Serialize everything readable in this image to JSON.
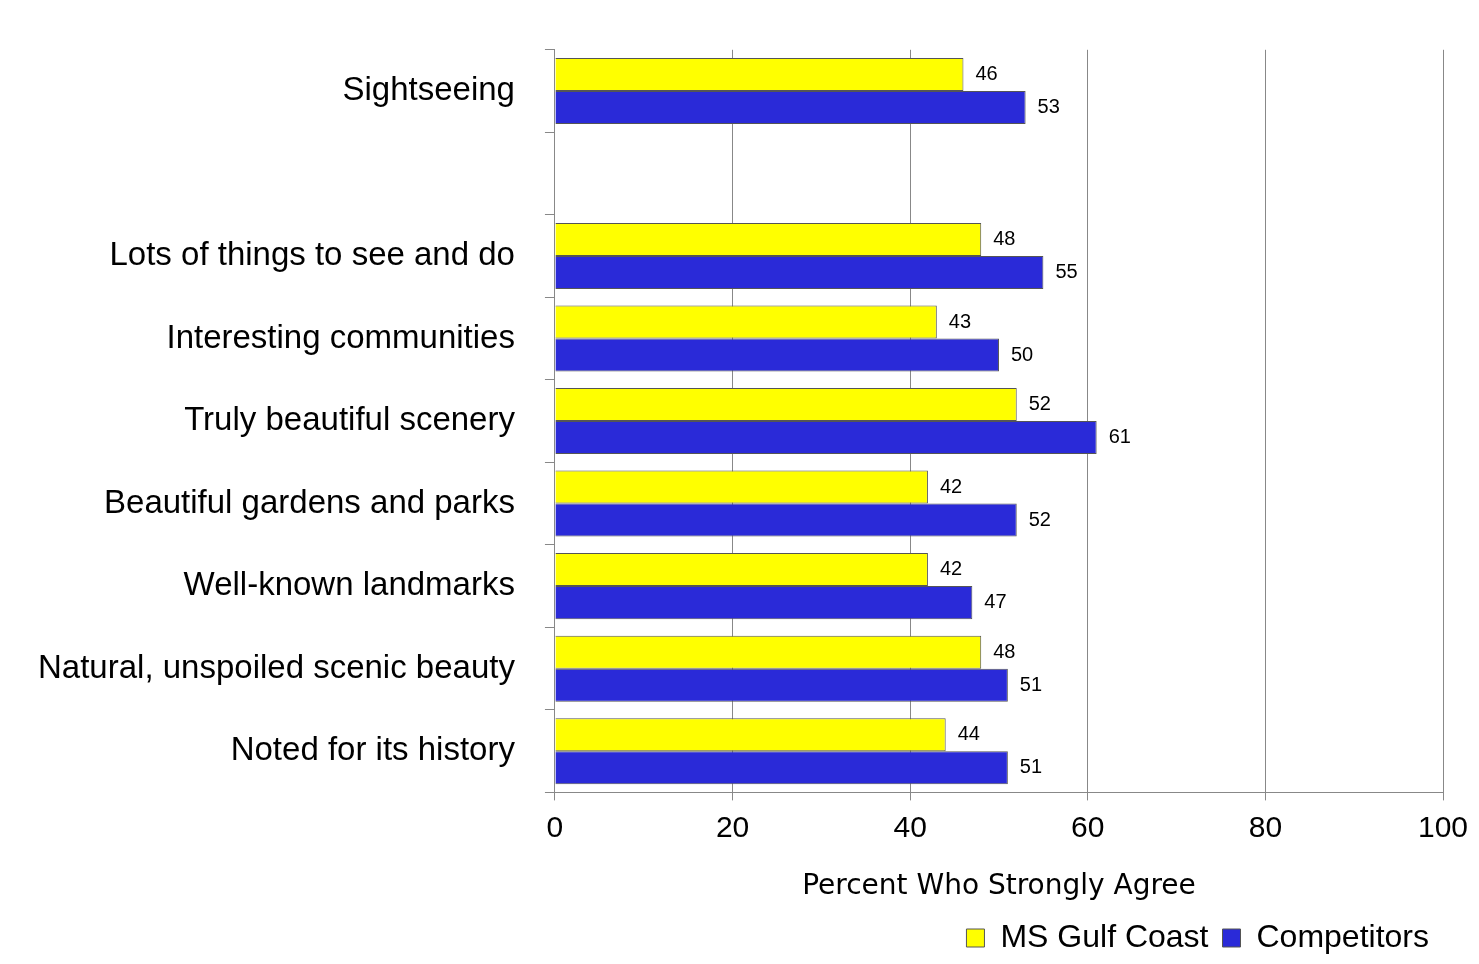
{
  "chart_data": {
    "type": "bar",
    "orientation": "horizontal",
    "xlabel": "Percent Who Strongly Agree",
    "categories": [
      "Sightseeing",
      null,
      "Lots of things to see and do",
      "Interesting communities",
      "Truly beautiful scenery",
      "Beautiful gardens and parks",
      "Well-known landmarks",
      "Natural, unspoiled scenic beauty",
      "Noted for its history"
    ],
    "series": [
      {
        "name": "MS Gulf Coast",
        "color": "#ffff00",
        "values": [
          46,
          null,
          48,
          43,
          52,
          42,
          42,
          48,
          44
        ]
      },
      {
        "name": "Competitors",
        "color": "#2a2ad8",
        "values": [
          53,
          null,
          55,
          50,
          61,
          52,
          47,
          51,
          51
        ]
      }
    ],
    "xlim": [
      0,
      100
    ],
    "xticks": [
      0,
      20,
      40,
      60,
      80,
      100
    ],
    "grid": "x",
    "legend": "bottom",
    "data_labels": true
  }
}
